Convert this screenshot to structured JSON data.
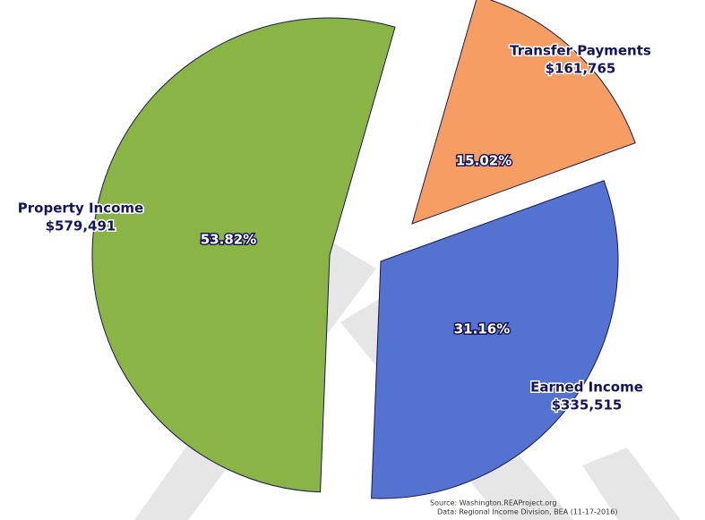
{
  "chart_data": {
    "type": "pie",
    "categories": [
      "Transfer Payments",
      "Earned Income",
      "Property Income"
    ],
    "values": [
      161765,
      335515,
      579491
    ],
    "value_labels": [
      "$161,765",
      "$335,515",
      "$579,491"
    ],
    "percent_labels": [
      "15.02%",
      "31.16%",
      "53.82%"
    ],
    "colors": [
      "#f59d63",
      "#5472cf",
      "#8ab446"
    ],
    "source": "Source: Washington.REAProject.org",
    "data_note": "Data: Regional Income Division, BEA (11-17-2016)"
  }
}
